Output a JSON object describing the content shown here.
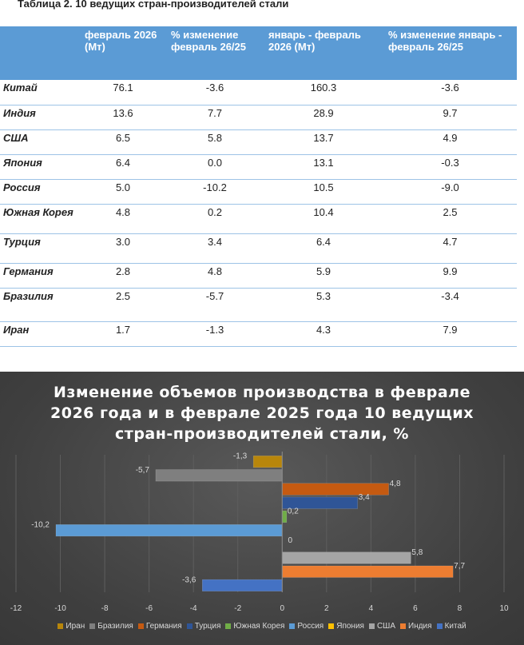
{
  "table": {
    "title": "Таблица 2. 10 ведущих стран-производителей стали",
    "headers": [
      "",
      "февраль 2026 (Мт)",
      "% изменение февраль 26/25",
      "январь - февраль 2026 (Мт)",
      "% изменение январь - февраль 26/25"
    ],
    "rows": [
      [
        "Китай",
        "76.1",
        "-3.6",
        "160.3",
        "-3.6"
      ],
      [
        "Индия",
        "13.6",
        "7.7",
        "28.9",
        "9.7"
      ],
      [
        "США",
        "6.5",
        "5.8",
        "13.7",
        "4.9"
      ],
      [
        "Япония",
        "6.4",
        "0.0",
        "13.1",
        "-0.3"
      ],
      [
        "Россия",
        "5.0",
        "-10.2",
        "10.5",
        "-9.0"
      ],
      [
        "Южная Корея",
        "4.8",
        "0.2",
        "10.4",
        "2.5"
      ],
      [
        "Турция",
        "3.0",
        "3.4",
        "6.4",
        "4.7"
      ],
      [
        "Германия",
        "2.8",
        "4.8",
        "5.9",
        "9.9"
      ],
      [
        "Бразилия",
        "2.5",
        "-5.7",
        "5.3",
        "-3.4"
      ],
      [
        "Иран",
        "1.7",
        "-1.3",
        "4.3",
        "7.9"
      ]
    ]
  },
  "chart_data": {
    "type": "bar",
    "orientation": "horizontal",
    "title": "Изменение объемов производства в феврале 2026 года и в феврале 2025 года 10 ведущих стран-производителей стали, %",
    "xlim": [
      -12,
      10
    ],
    "x_ticks": [
      -12,
      -10,
      -8,
      -6,
      -4,
      -2,
      0,
      2,
      4,
      6,
      8,
      10
    ],
    "legend_position": "bottom",
    "series": [
      {
        "name": "Иран",
        "value": -1.3,
        "label": "-1,3",
        "color": "#b8860b"
      },
      {
        "name": "Бразилия",
        "value": -5.7,
        "label": "-5,7",
        "color": "#7f7f7f"
      },
      {
        "name": "Германия",
        "value": 4.8,
        "label": "4,8",
        "color": "#c55a11"
      },
      {
        "name": "Турция",
        "value": 3.4,
        "label": "3,4",
        "color": "#2f5597"
      },
      {
        "name": "Южная Корея",
        "value": 0.2,
        "label": "0,2",
        "color": "#70ad47"
      },
      {
        "name": "Россия",
        "value": -10.2,
        "label": "-10,2",
        "color": "#5b9bd5"
      },
      {
        "name": "Япония",
        "value": 0.0,
        "label": "0",
        "color": "#ffc000"
      },
      {
        "name": "США",
        "value": 5.8,
        "label": "5,8",
        "color": "#a5a5a5"
      },
      {
        "name": "Индия",
        "value": 7.7,
        "label": "7,7",
        "color": "#ed7d31"
      },
      {
        "name": "Китай",
        "value": -3.6,
        "label": "-3,6",
        "color": "#4472c4"
      }
    ]
  }
}
